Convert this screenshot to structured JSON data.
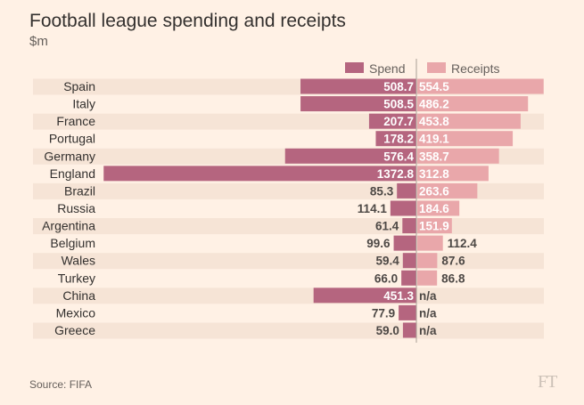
{
  "chart_data": {
    "type": "bar",
    "orientation": "horizontal-diverging",
    "title": "Football league spending and receipts",
    "subtitle": "$m",
    "source": "Source: FIFA",
    "logo": "FT",
    "categories": [
      "Spain",
      "Italy",
      "France",
      "Portugal",
      "Germany",
      "England",
      "Brazil",
      "Russia",
      "Argentina",
      "Belgium",
      "Wales",
      "Turkey",
      "China",
      "Mexico",
      "Greece"
    ],
    "series": [
      {
        "name": "Spend",
        "color": "#b5657f",
        "values": [
          508.7,
          508.5,
          207.7,
          178.2,
          576.4,
          1372.8,
          85.3,
          114.1,
          61.4,
          99.6,
          59.4,
          66.0,
          451.3,
          77.9,
          59.0
        ]
      },
      {
        "name": "Receipts",
        "color": "#e9a7aa",
        "values": [
          554.5,
          486.2,
          453.8,
          419.1,
          358.7,
          312.8,
          263.6,
          184.6,
          151.9,
          112.4,
          87.6,
          86.8,
          null,
          null,
          null
        ]
      }
    ],
    "missing_label": "n/a",
    "legend": "top-center",
    "grid": false
  }
}
